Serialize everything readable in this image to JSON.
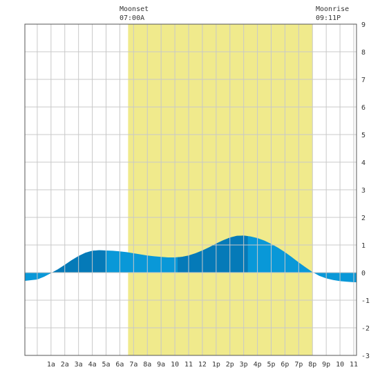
{
  "moon": {
    "moonset_label": "Moonset",
    "moonset_time": "07:00A",
    "moonrise_label": "Moonrise",
    "moonrise_time": "09:11P"
  },
  "chart_data": {
    "type": "area",
    "title": "",
    "xlabel": "",
    "ylabel": "",
    "x_unit": "hour of day",
    "xlim": [
      -0.9,
      23.2
    ],
    "ylim": [
      -3,
      9
    ],
    "grid": true,
    "x_tick_labels": [
      "1a",
      "2a",
      "3a",
      "4a",
      "5a",
      "6a",
      "7a",
      "8a",
      "9a",
      "10",
      "11",
      "12",
      "1p",
      "2p",
      "3p",
      "4p",
      "5p",
      "6p",
      "7p",
      "8p",
      "9p",
      "10",
      "11"
    ],
    "y_tick_labels": [
      "-3",
      "-2",
      "-1",
      "0",
      "1",
      "2",
      "3",
      "4",
      "5",
      "6",
      "7",
      "8",
      "9"
    ],
    "daylight_band": {
      "start": 6.6,
      "end": 20.0
    },
    "series": [
      {
        "x": [
          -0.9,
          0,
          0.5,
          1,
          1.5,
          2,
          2.5,
          3,
          3.5,
          4,
          4.5,
          5,
          5.5,
          6,
          6.5,
          7,
          7.5,
          8,
          8.5,
          9,
          9.5,
          10,
          10.5,
          11,
          11.5,
          12,
          12.5,
          13,
          13.5,
          14,
          14.5,
          15,
          15.5,
          16,
          16.5,
          17,
          17.5,
          18,
          18.5,
          19,
          19.5,
          20,
          20.5,
          21,
          21.5,
          22,
          22.5,
          23,
          23.2
        ],
        "y": [
          -0.3,
          -0.25,
          -0.15,
          -0.02,
          0.12,
          0.28,
          0.45,
          0.6,
          0.72,
          0.79,
          0.81,
          0.8,
          0.79,
          0.77,
          0.74,
          0.7,
          0.66,
          0.62,
          0.59,
          0.57,
          0.55,
          0.55,
          0.57,
          0.62,
          0.7,
          0.8,
          0.92,
          1.05,
          1.17,
          1.27,
          1.33,
          1.34,
          1.31,
          1.25,
          1.16,
          1.04,
          0.9,
          0.74,
          0.56,
          0.37,
          0.19,
          0.02,
          -0.12,
          -0.21,
          -0.27,
          -0.31,
          -0.33,
          -0.35,
          -0.35
        ]
      }
    ],
    "tide_phase_boundaries": [
      0.9,
      4.95,
      10.2,
      15.3,
      21.0
    ],
    "colors": {
      "daylight": "#f0ea8c",
      "water_light": "#0998d8",
      "water_dark": "#057ab8",
      "grid": "#c8c8c8",
      "axis": "#555555"
    }
  }
}
